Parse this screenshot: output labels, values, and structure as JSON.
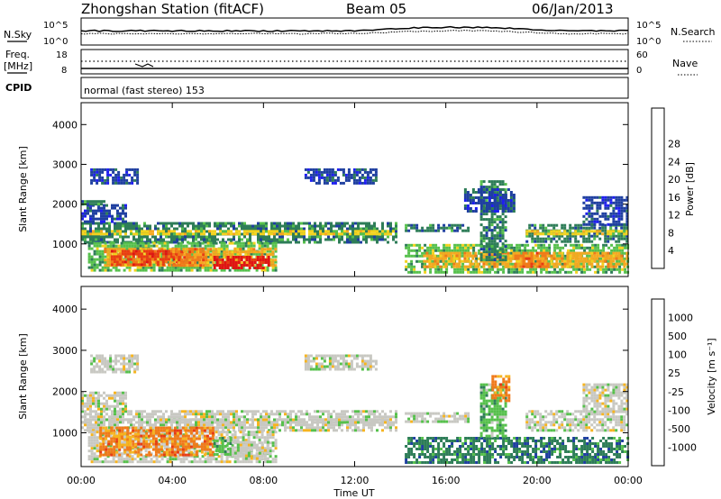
{
  "header": {
    "title": "Zhongshan Station (fitACF)",
    "beam": "Beam 05",
    "date": "06/Jan/2013"
  },
  "top_panels": {
    "noise": {
      "left_label": "N.Sky",
      "right_label": "N.Search",
      "left_ticks": [
        "10^5",
        "10^0"
      ],
      "right_ticks": [
        "10^5",
        "10^0"
      ]
    },
    "freq": {
      "left_label": "Freq.",
      "left_unit": "[MHz]",
      "right_label": "Nave",
      "left_ticks": [
        "18",
        "8"
      ],
      "right_ticks": [
        "60",
        "0"
      ]
    },
    "cpid": {
      "label": "CPID",
      "text": "normal (fast stereo) 153"
    }
  },
  "chart_data": [
    {
      "type": "heatmap",
      "name": "power",
      "ylabel": "Slant Range [km]",
      "xlabel": "",
      "ylim": [
        180,
        4550
      ],
      "yticks": [
        1000,
        2000,
        3000,
        4000
      ],
      "colorbar": {
        "label": "Power [dB]",
        "ticks": [
          "4",
          "8",
          "12",
          "16",
          "20",
          "24",
          "28"
        ],
        "colors": [
          "#1e1ef0",
          "#1f3fa0",
          "#2e7d58",
          "#56c04c",
          "#f2d21e",
          "#f6a820",
          "#f07a1a",
          "#e83c14",
          "#e01414"
        ]
      },
      "blocks": [
        {
          "t": [
            0.0,
            13.8
          ],
          "r": [
            1050,
            1550
          ],
          "c": 2
        },
        {
          "t": [
            0.0,
            13.8
          ],
          "r": [
            1250,
            1350
          ],
          "c": 4
        },
        {
          "t": [
            0.0,
            2.0
          ],
          "r": [
            1550,
            2000
          ],
          "c": 1
        },
        {
          "t": [
            0.0,
            1.0
          ],
          "r": [
            2000,
            2100
          ],
          "c": 2
        },
        {
          "t": [
            0.3,
            8.5
          ],
          "r": [
            320,
            1050
          ],
          "c": 3
        },
        {
          "t": [
            1.0,
            8.5
          ],
          "r": [
            450,
            900
          ],
          "c": 5
        },
        {
          "t": [
            1.3,
            4.5
          ],
          "r": [
            500,
            850
          ],
          "c": 7
        },
        {
          "t": [
            4.0,
            5.5
          ],
          "r": [
            450,
            900
          ],
          "c": 6
        },
        {
          "t": [
            5.8,
            8.2
          ],
          "r": [
            380,
            700
          ],
          "c": 8
        },
        {
          "t": [
            0.4,
            2.5
          ],
          "r": [
            2500,
            2900
          ],
          "c": 1
        },
        {
          "t": [
            9.8,
            13.0
          ],
          "r": [
            2550,
            2900
          ],
          "c": 1
        },
        {
          "t": [
            14.2,
            24.0
          ],
          "r": [
            300,
            1000
          ],
          "c": 3
        },
        {
          "t": [
            15.0,
            24.0
          ],
          "r": [
            450,
            800
          ],
          "c": 5
        },
        {
          "t": [
            17.5,
            18.6
          ],
          "r": [
            600,
            2600
          ],
          "c": 2
        },
        {
          "t": [
            19.0,
            20.5
          ],
          "r": [
            450,
            800
          ],
          "c": 6
        },
        {
          "t": [
            14.2,
            17.0
          ],
          "r": [
            1300,
            1500
          ],
          "c": 2
        },
        {
          "t": [
            16.8,
            19.0
          ],
          "r": [
            1800,
            2400
          ],
          "c": 1
        },
        {
          "t": [
            19.5,
            24.0
          ],
          "r": [
            1050,
            1500
          ],
          "c": 2
        },
        {
          "t": [
            19.5,
            24.0
          ],
          "r": [
            1250,
            1350
          ],
          "c": 4
        },
        {
          "t": [
            22.0,
            24.0
          ],
          "r": [
            1500,
            2200
          ],
          "c": 1
        }
      ]
    },
    {
      "type": "heatmap",
      "name": "velocity",
      "ylabel": "Slant Range [km]",
      "xlabel": "Time UT",
      "ylim": [
        180,
        4550
      ],
      "yticks": [
        1000,
        2000,
        3000,
        4000
      ],
      "xticks": [
        "00:00",
        "04:00",
        "08:00",
        "12:00",
        "16:00",
        "20:00",
        "00:00"
      ],
      "xlim": [
        0,
        24
      ],
      "colorbar": {
        "label": "Velocity [m s⁻¹]",
        "ticks": [
          "1000",
          "500",
          "100",
          "25",
          "-25",
          "-100",
          "-500",
          "-1000"
        ],
        "colors": [
          "#1e1ef0",
          "#1f3fa0",
          "#2e7d58",
          "#56c04c",
          "#c8c8c2",
          "#f6b420",
          "#f07a1a",
          "#e83c14",
          "#e01414"
        ]
      },
      "blocks": [
        {
          "t": [
            0.0,
            13.8
          ],
          "r": [
            1050,
            1550
          ],
          "c": 4
        },
        {
          "t": [
            0.0,
            13.8
          ],
          "r": [
            1250,
            1350
          ],
          "c": 4
        },
        {
          "t": [
            0.0,
            2.0
          ],
          "r": [
            1550,
            2000
          ],
          "c": 4
        },
        {
          "t": [
            0.3,
            8.5
          ],
          "r": [
            320,
            1050
          ],
          "c": 4
        },
        {
          "t": [
            0.8,
            3.0
          ],
          "r": [
            450,
            1150
          ],
          "c": 6
        },
        {
          "t": [
            3.0,
            5.8
          ],
          "r": [
            450,
            1150
          ],
          "c": 6
        },
        {
          "t": [
            1.5,
            2.5
          ],
          "r": [
            650,
            1000
          ],
          "c": 5
        },
        {
          "t": [
            5.8,
            6.6
          ],
          "r": [
            500,
            900
          ],
          "c": 3
        },
        {
          "t": [
            6.6,
            8.2
          ],
          "r": [
            400,
            800
          ],
          "c": 4
        },
        {
          "t": [
            0.4,
            2.5
          ],
          "r": [
            2500,
            2900
          ],
          "c": 4
        },
        {
          "t": [
            9.8,
            13.0
          ],
          "r": [
            2550,
            2900
          ],
          "c": 4
        },
        {
          "t": [
            14.2,
            24.0
          ],
          "r": [
            300,
            900
          ],
          "c": 2
        },
        {
          "t": [
            14.2,
            17.0
          ],
          "r": [
            1300,
            1500
          ],
          "c": 4
        },
        {
          "t": [
            17.5,
            18.6
          ],
          "r": [
            900,
            2200
          ],
          "c": 3
        },
        {
          "t": [
            18.0,
            18.8
          ],
          "r": [
            1800,
            2400
          ],
          "c": 6
        },
        {
          "t": [
            19.5,
            24.0
          ],
          "r": [
            1050,
            1550
          ],
          "c": 4
        },
        {
          "t": [
            22.0,
            24.0
          ],
          "r": [
            1500,
            2200
          ],
          "c": 4
        }
      ]
    }
  ]
}
